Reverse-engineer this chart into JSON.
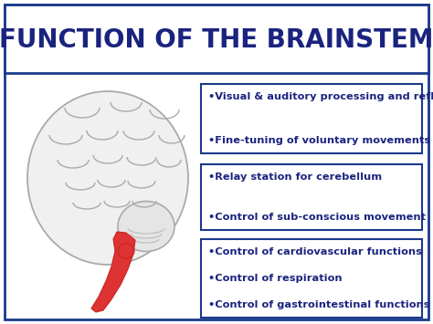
{
  "title": "FUNCTION OF THE BRAINSTEM",
  "title_color": "#1a237e",
  "background_color": "#ffffff",
  "border_color": "#1a3a8a",
  "box_border_color": "#1a3a8a",
  "box_bg_color": "#ffffff",
  "text_color": "#1a237e",
  "boxes": [
    {
      "lines": [
        "•Visual & auditory processing and reflexes",
        "•Fine-tuning of voluntary movements"
      ]
    },
    {
      "lines": [
        "•Relay station for cerebellum",
        "•Control of sub-conscious movement"
      ]
    },
    {
      "lines": [
        "•Control of cardiovascular functions",
        "•Control of respiration",
        "•Control of gastrointestinal functions"
      ]
    }
  ]
}
